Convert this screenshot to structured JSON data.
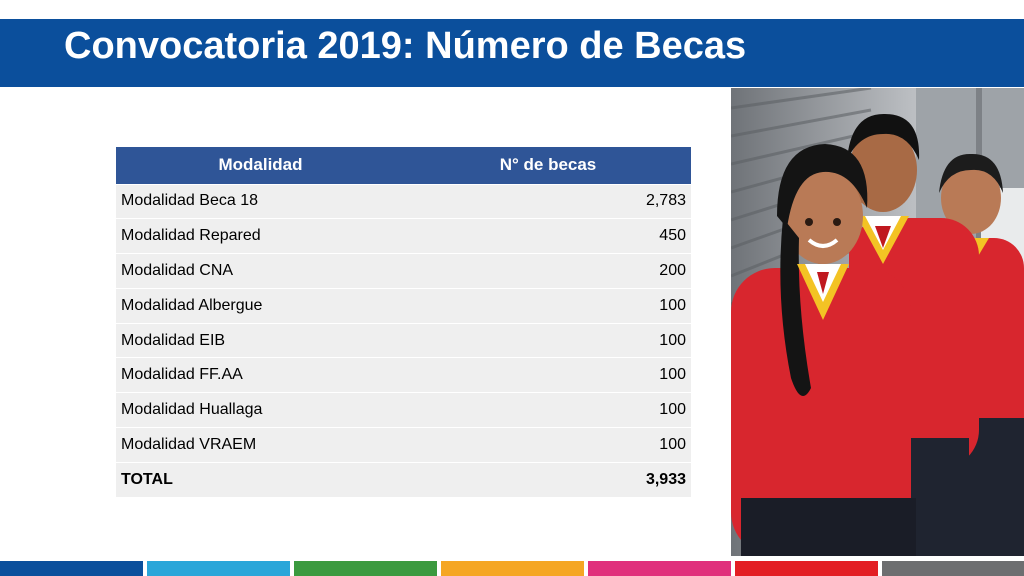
{
  "slide": {
    "title": "Convocatoria 2019: Número de Becas"
  },
  "table": {
    "headers": [
      "Modalidad",
      "N° de becas"
    ],
    "rows": [
      {
        "label": "Modalidad Beca 18",
        "value": "2,783"
      },
      {
        "label": "Modalidad Repared",
        "value": "450"
      },
      {
        "label": "Modalidad CNA",
        "value": "200"
      },
      {
        "label": "Modalidad Albergue",
        "value": "100"
      },
      {
        "label": "Modalidad EIB",
        "value": "100"
      },
      {
        "label": "Modalidad FF.AA",
        "value": "100"
      },
      {
        "label": "Modalidad Huallaga",
        "value": "100"
      },
      {
        "label": "Modalidad VRAEM",
        "value": "100"
      }
    ],
    "total": {
      "label": "TOTAL",
      "value": "3,933"
    }
  },
  "photo": {
    "subject": "students-in-red-uniforms-photo"
  },
  "colors": {
    "title_bar": "#0b4f9c",
    "table_header": "#2f5597",
    "table_row": "#efefef",
    "uniform_red": "#d8262e",
    "strip": [
      "#0b4f9c",
      "#2aa6d9",
      "#3b9a3f",
      "#f5a623",
      "#e0307c",
      "#e31e24",
      "#6d6e70"
    ]
  }
}
